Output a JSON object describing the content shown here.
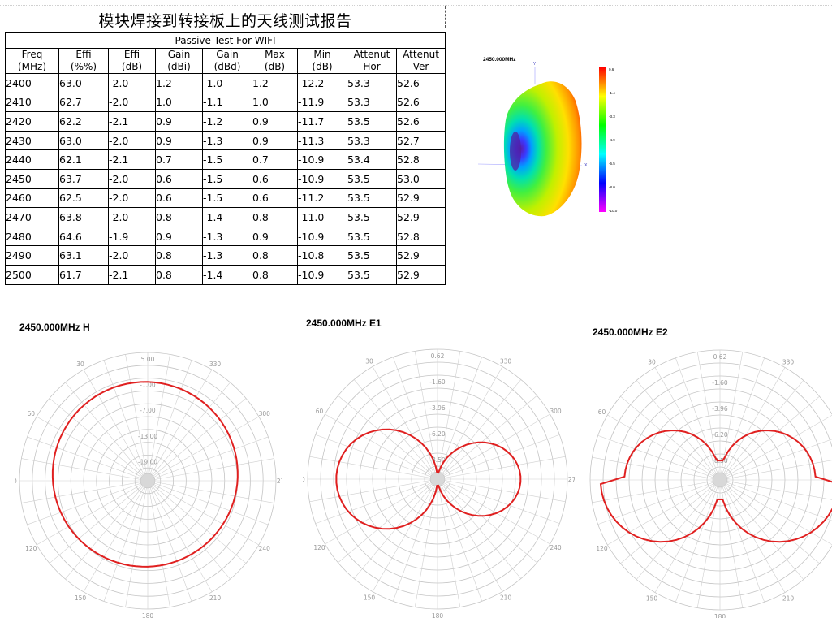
{
  "report": {
    "title": "模块焊接到转接板上的天线测试报告",
    "subtitle": "Passive Test For WIFI",
    "headers": [
      {
        "l1": "Freq",
        "l2": "(MHz)"
      },
      {
        "l1": "Effi",
        "l2": "(%%)"
      },
      {
        "l1": "Effi",
        "l2": "(dB)"
      },
      {
        "l1": "Gain",
        "l2": "(dBi)"
      },
      {
        "l1": "Gain",
        "l2": "(dBd)"
      },
      {
        "l1": "Max",
        "l2": "(dB)"
      },
      {
        "l1": "Min",
        "l2": "(dB)"
      },
      {
        "l1": "Attenut",
        "l2": "Hor"
      },
      {
        "l1": "Attenut",
        "l2": "Ver"
      }
    ],
    "rows": [
      [
        "2400",
        "63.0",
        "-2.0",
        "1.2",
        "-1.0",
        "1.2",
        "-12.2",
        "53.3",
        "52.6"
      ],
      [
        "2410",
        "62.7",
        "-2.0",
        "1.0",
        "-1.1",
        "1.0",
        "-11.9",
        "53.3",
        "52.6"
      ],
      [
        "2420",
        "62.2",
        "-2.1",
        "0.9",
        "-1.2",
        "0.9",
        "-11.7",
        "53.5",
        "52.6"
      ],
      [
        "2430",
        "63.0",
        "-2.0",
        "0.9",
        "-1.3",
        "0.9",
        "-11.3",
        "53.3",
        "52.7"
      ],
      [
        "2440",
        "62.1",
        "-2.1",
        "0.7",
        "-1.5",
        "0.7",
        "-10.9",
        "53.4",
        "52.8"
      ],
      [
        "2450",
        "63.7",
        "-2.0",
        "0.6",
        "-1.5",
        "0.6",
        "-10.9",
        "53.5",
        "53.0"
      ],
      [
        "2460",
        "62.5",
        "-2.0",
        "0.6",
        "-1.5",
        "0.6",
        "-11.2",
        "53.5",
        "52.9"
      ],
      [
        "2470",
        "63.8",
        "-2.0",
        "0.8",
        "-1.4",
        "0.8",
        "-11.0",
        "53.5",
        "52.9"
      ],
      [
        "2480",
        "64.6",
        "-1.9",
        "0.9",
        "-1.3",
        "0.9",
        "-10.9",
        "53.5",
        "52.8"
      ],
      [
        "2490",
        "63.1",
        "-2.0",
        "0.8",
        "-1.3",
        "0.8",
        "-10.8",
        "53.5",
        "52.9"
      ],
      [
        "2500",
        "61.7",
        "-2.1",
        "0.8",
        "-1.4",
        "0.8",
        "-10.9",
        "53.5",
        "52.9"
      ]
    ]
  },
  "pattern_3d": {
    "title": "2450.000MHz",
    "axis_labels": [
      "Y",
      "X"
    ],
    "scale": [
      "0.6",
      "-1.4",
      "-3.3",
      "-4.9",
      "-6.5",
      "-8.0",
      "-10.0"
    ],
    "colors": [
      "#ff0000",
      "#ffff00",
      "#00ff00",
      "#00ffff",
      "#0000ff",
      "#ff00ff"
    ]
  },
  "plots": [
    {
      "title": "2450.000MHz  H",
      "rings": [
        "5.00",
        "-1.00",
        "-7.00",
        "-13.00",
        "-19.00"
      ],
      "angles": [
        "30",
        "330",
        "60",
        "300",
        "90",
        "270",
        "120",
        "240",
        "150",
        "210",
        "180"
      ],
      "trace_color": "#e02020"
    },
    {
      "title": "2450.000MHz  E1",
      "rings": [
        "0.62",
        "-1.60",
        "-3.96",
        "-6.20",
        "-8.50"
      ],
      "angles": [
        "30",
        "330",
        "60",
        "300",
        "90",
        "270",
        "120",
        "240",
        "150",
        "210",
        "180"
      ],
      "trace_color": "#e02020"
    },
    {
      "title": "2450.000MHz  E2",
      "rings": [
        "0.62",
        "-1.60",
        "-3.96",
        "-6.20",
        "-8.50"
      ],
      "angles": [
        "30",
        "330",
        "60",
        "300",
        "90",
        "270",
        "120",
        "240",
        "150",
        "210",
        "180"
      ],
      "trace_color": "#e02020"
    }
  ]
}
